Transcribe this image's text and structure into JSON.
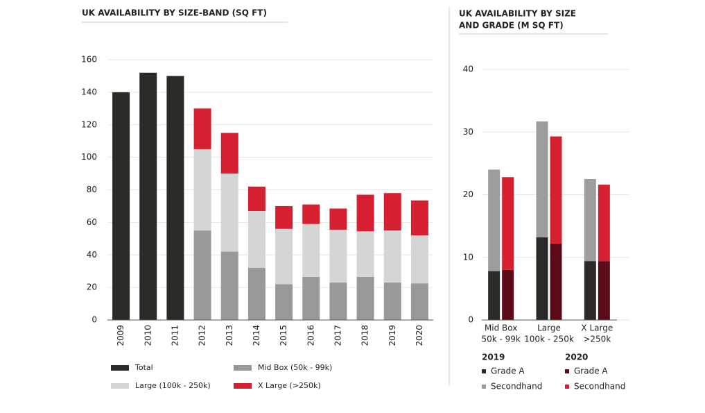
{
  "chart_data": [
    {
      "type": "stacked_bar",
      "title": "UK AVAILABILITY BY SIZE-BAND (SQ FT)",
      "categories": [
        "2009",
        "2010",
        "2011",
        "2012",
        "2013",
        "2014",
        "2015",
        "2016",
        "2017",
        "2018",
        "2019",
        "2020"
      ],
      "series": [
        {
          "name": "Total",
          "color": "#2b2a27",
          "values": [
            140,
            152,
            150,
            null,
            null,
            null,
            null,
            null,
            null,
            null,
            null,
            null
          ]
        },
        {
          "name": "Mid Box (50k - 99k)",
          "color": "#989a9a",
          "values": [
            null,
            null,
            null,
            55,
            42,
            32,
            22,
            26.5,
            23,
            26.5,
            23,
            22.5
          ]
        },
        {
          "name": "Large (100k - 250k)",
          "color": "#d5d5d5",
          "values": [
            null,
            null,
            null,
            50,
            48,
            35,
            34,
            32.5,
            32.5,
            28,
            32,
            29.5
          ]
        },
        {
          "name": "X Large (>250k)",
          "color": "#d42030",
          "values": [
            null,
            null,
            null,
            25,
            25,
            15,
            14,
            12,
            13,
            22.5,
            23,
            21.5
          ]
        }
      ],
      "ylim": [
        0,
        160
      ],
      "yticks": [
        0,
        20,
        40,
        60,
        80,
        100,
        120,
        140,
        160
      ],
      "grid": true
    },
    {
      "type": "grouped_stacked_bar",
      "title": [
        "UK AVAILABILITY BY SIZE",
        "AND GRADE (M SQ FT)"
      ],
      "categories": [
        [
          "Mid Box",
          "50k - 99k"
        ],
        [
          "Large",
          "100k - 250k"
        ],
        [
          "X Large",
          ">250k"
        ]
      ],
      "groups": [
        {
          "name": "2019",
          "series": [
            {
              "name": "Grade A",
              "color": "#2b2a27",
              "values": [
                7.8,
                13.2,
                9.4
              ]
            },
            {
              "name": "Secondhand",
              "color": "#9d9d9d",
              "values": [
                16.2,
                18.5,
                13.1
              ]
            }
          ]
        },
        {
          "name": "2020",
          "series": [
            {
              "name": "Grade A",
              "color": "#5a0a18",
              "values": [
                8,
                12.2,
                9.4
              ]
            },
            {
              "name": "Secondhand",
              "color": "#d42030",
              "values": [
                14.8,
                17.1,
                12.2
              ]
            }
          ]
        }
      ],
      "ylim": [
        0,
        40
      ],
      "yticks": [
        0,
        10,
        20,
        30,
        40
      ],
      "grid": true
    }
  ]
}
